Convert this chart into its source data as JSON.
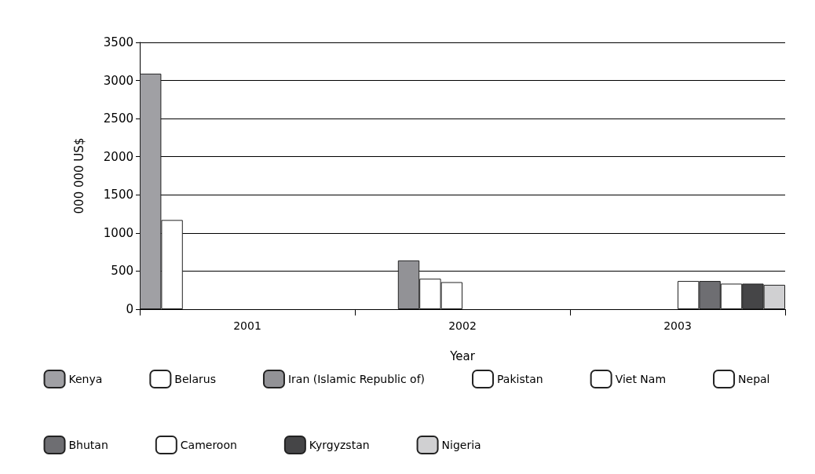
{
  "chart_data": {
    "type": "bar",
    "xlabel": "Year",
    "ylabel": "000 000 US$",
    "categories": [
      "2001",
      "2002",
      "2003"
    ],
    "series": [
      {
        "name": "Kenya",
        "color": "#a0a0a4",
        "values": [
          3090,
          null,
          null
        ]
      },
      {
        "name": "Belarus",
        "color": "#ffffff",
        "values": [
          1170,
          null,
          null
        ]
      },
      {
        "name": "Iran (Islamic Republic of)",
        "color": "#929296",
        "values": [
          null,
          640,
          null
        ]
      },
      {
        "name": "Pakistan",
        "color": "#ffffff",
        "values": [
          null,
          400,
          null
        ]
      },
      {
        "name": "Viet Nam",
        "color": "#ffffff",
        "values": [
          null,
          355,
          null
        ]
      },
      {
        "name": "Nepal",
        "color": "#ffffff",
        "values": [
          null,
          null,
          370
        ]
      },
      {
        "name": "Bhutan",
        "color": "#6e6e72",
        "values": [
          null,
          null,
          370
        ]
      },
      {
        "name": "Cameroon",
        "color": "#ffffff",
        "values": [
          null,
          null,
          335
        ]
      },
      {
        "name": "Kyrgyzstan",
        "color": "#454547",
        "values": [
          null,
          null,
          335
        ]
      },
      {
        "name": "Nigeria",
        "color": "#d0d0d2",
        "values": [
          null,
          null,
          320
        ]
      }
    ],
    "ylim": [
      0,
      3500
    ],
    "yticks": [
      0,
      500,
      1000,
      1500,
      2000,
      2500,
      3000,
      3500
    ],
    "grid": "y",
    "legend": "bottom"
  }
}
